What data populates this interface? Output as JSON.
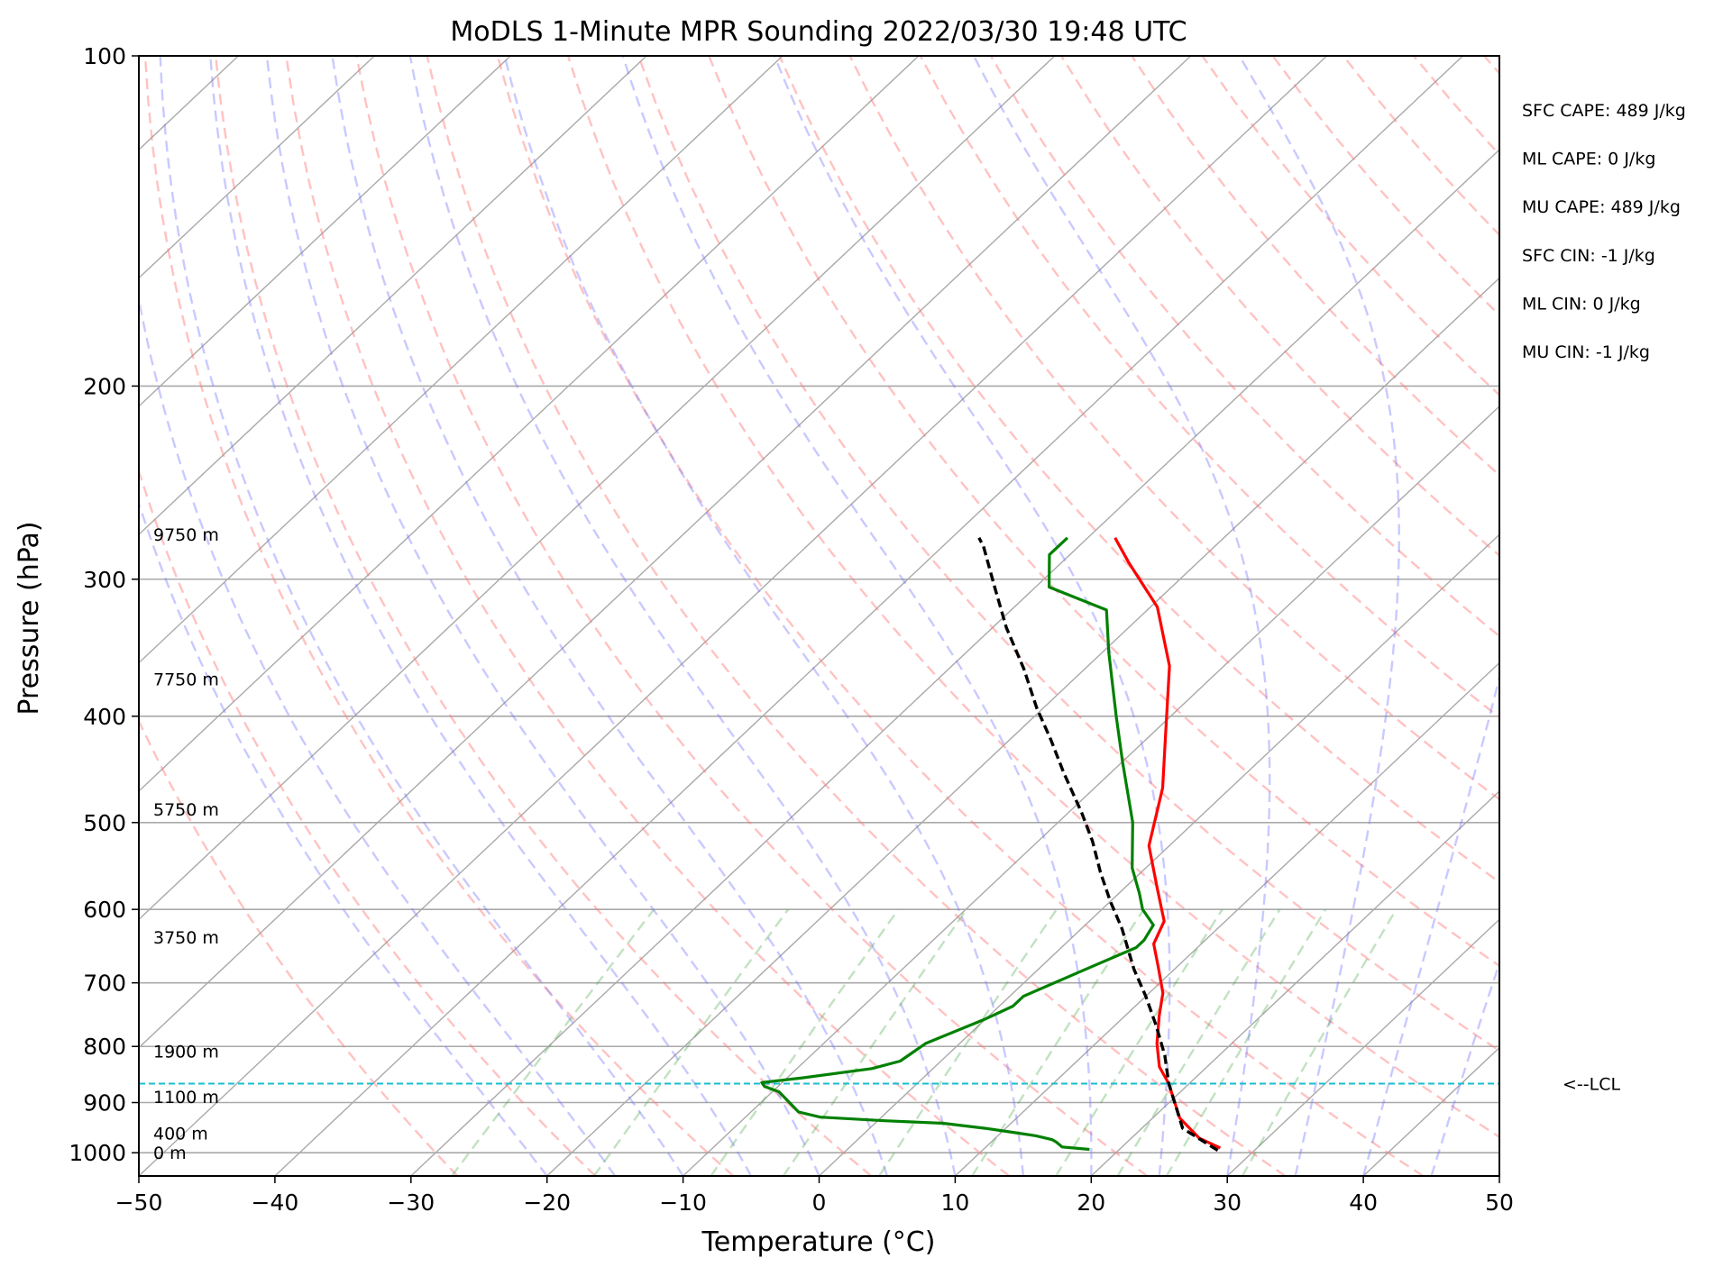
{
  "chart_data": {
    "type": "line",
    "title": "MoDLS 1-Minute MPR Sounding 2022/03/30 19:48 UTC",
    "xlabel": "Temperature (°C)",
    "ylabel": "Pressure (hPa)",
    "xlim": [
      -50,
      50
    ],
    "ylim": [
      1050,
      100
    ],
    "y_scale": "log",
    "skew": "skew-T log-P",
    "xticks": [
      "−50",
      "−40",
      "−30",
      "−20",
      "−10",
      "0",
      "10",
      "20",
      "30",
      "40",
      "50"
    ],
    "yticks": [
      "100",
      "200",
      "300",
      "400",
      "500",
      "600",
      "700",
      "800",
      "900",
      "1000"
    ],
    "grid": true,
    "height_labels": [
      {
        "label": "9750 m",
        "p": 273
      },
      {
        "label": "7750 m",
        "p": 370
      },
      {
        "label": "5750 m",
        "p": 486
      },
      {
        "label": "3750 m",
        "p": 636
      },
      {
        "label": "1900 m",
        "p": 808
      },
      {
        "label": "1100 m",
        "p": 889
      },
      {
        "label": "400 m",
        "p": 960
      },
      {
        "label": "0 m",
        "p": 1000
      }
    ],
    "stats": [
      "SFC CAPE: 489 J/kg",
      "ML CAPE: 0 J/kg",
      "MU CAPE: 489 J/kg",
      "SFC CIN: -1 J/kg",
      "ML CIN: 0 J/kg",
      "MU CIN: -1 J/kg"
    ],
    "lcl": {
      "p": 865,
      "label": "<--LCL"
    },
    "series": [
      {
        "kind": "temperature",
        "color": "#ff0000",
        "points": [
          [
            27.3,
            990
          ],
          [
            25,
            970
          ],
          [
            22,
            930
          ],
          [
            18.5,
            865
          ],
          [
            16.5,
            835
          ],
          [
            14.5,
            795
          ],
          [
            12.5,
            750
          ],
          [
            11,
            715
          ],
          [
            8.5,
            675
          ],
          [
            6.5,
            645
          ],
          [
            5.5,
            615
          ],
          [
            2.5,
            575
          ],
          [
            -1.5,
            525
          ],
          [
            -5,
            465
          ],
          [
            -9,
            415
          ],
          [
            -14,
            360
          ],
          [
            -19.5,
            318
          ],
          [
            -25,
            290
          ],
          [
            -28,
            275
          ]
        ]
      },
      {
        "kind": "dewpoint",
        "color": "#008000",
        "points": [
          [
            17.8,
            993
          ],
          [
            15.6,
            988
          ],
          [
            14.8,
            978
          ],
          [
            14.3,
            973
          ],
          [
            12.8,
            965
          ],
          [
            10.8,
            958
          ],
          [
            8.5,
            950
          ],
          [
            5,
            940
          ],
          [
            0.5,
            935
          ],
          [
            -4.5,
            928
          ],
          [
            -6.5,
            918
          ],
          [
            -9.5,
            880
          ],
          [
            -11,
            870
          ],
          [
            -11.5,
            863
          ],
          [
            -9,
            855
          ],
          [
            -4.5,
            838
          ],
          [
            -3,
            825
          ],
          [
            -2.5,
            795
          ],
          [
            0,
            755
          ],
          [
            1,
            735
          ],
          [
            1,
            720
          ],
          [
            3.5,
            680
          ],
          [
            5.5,
            650
          ],
          [
            5.5,
            640
          ],
          [
            5,
            620
          ],
          [
            3,
            600
          ],
          [
            1.5,
            580
          ],
          [
            -1,
            550
          ],
          [
            -4.5,
            500
          ],
          [
            -10,
            440
          ],
          [
            -14,
            400
          ],
          [
            -19.5,
            350
          ],
          [
            -23,
            320
          ],
          [
            -29,
            305
          ],
          [
            -31.5,
            285
          ],
          [
            -31.5,
            275
          ]
        ]
      },
      {
        "kind": "parcel",
        "color": "#000000",
        "style": "dashed",
        "points": [
          [
            27.3,
            995
          ],
          [
            23,
            950
          ],
          [
            18.5,
            865
          ],
          [
            16,
            815
          ],
          [
            13,
            765
          ],
          [
            10,
            720
          ],
          [
            7,
            680
          ],
          [
            3,
            625
          ],
          [
            0,
            590
          ],
          [
            -3,
            555
          ],
          [
            -6,
            520
          ],
          [
            -9,
            490
          ],
          [
            -13.5,
            450
          ],
          [
            -17,
            420
          ],
          [
            -20.5,
            393
          ],
          [
            -24.5,
            362
          ],
          [
            -29,
            332
          ],
          [
            -33,
            305
          ],
          [
            -37,
            280
          ],
          [
            -38,
            275
          ]
        ]
      }
    ]
  }
}
